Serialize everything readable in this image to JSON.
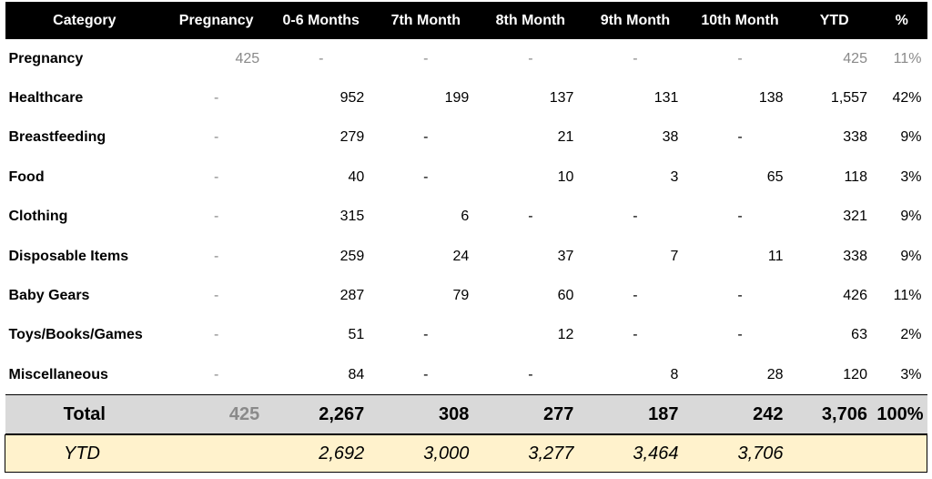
{
  "headers": [
    "Category",
    "Pregnancy",
    "0-6 Months",
    "7th Month",
    "8th Month",
    "9th Month",
    "10th Month",
    "YTD",
    "%"
  ],
  "rows": [
    {
      "category": "Pregnancy",
      "cells": [
        "425",
        "-",
        "-",
        "-",
        "-",
        "-",
        "425",
        "11%"
      ],
      "muted": true
    },
    {
      "category": "Healthcare",
      "cells": [
        "-",
        "952",
        "199",
        "137",
        "131",
        "138",
        "1,557",
        "42%"
      ],
      "muted": false
    },
    {
      "category": "Breastfeeding",
      "cells": [
        "-",
        "279",
        "-",
        "21",
        "38",
        "-",
        "338",
        "9%"
      ],
      "muted": false
    },
    {
      "category": "Food",
      "cells": [
        "-",
        "40",
        "-",
        "10",
        "3",
        "65",
        "118",
        "3%"
      ],
      "muted": false
    },
    {
      "category": "Clothing",
      "cells": [
        "-",
        "315",
        "6",
        "-",
        "-",
        "-",
        "321",
        "9%"
      ],
      "muted": false
    },
    {
      "category": "Disposable Items",
      "cells": [
        "-",
        "259",
        "24",
        "37",
        "7",
        "11",
        "338",
        "9%"
      ],
      "muted": false
    },
    {
      "category": "Baby Gears",
      "cells": [
        "-",
        "287",
        "79",
        "60",
        "-",
        "-",
        "426",
        "11%"
      ],
      "muted": false
    },
    {
      "category": "Toys/Books/Games",
      "cells": [
        "-",
        "51",
        "-",
        "12",
        "-",
        "-",
        "63",
        "2%"
      ],
      "muted": false
    },
    {
      "category": "Miscellaneous",
      "cells": [
        "-",
        "84",
        "-",
        "-",
        "8",
        "28",
        "120",
        "3%"
      ],
      "muted": false
    }
  ],
  "total": {
    "label": "Total",
    "cells": [
      "425",
      "2,267",
      "308",
      "277",
      "187",
      "242",
      "3,706",
      "100%"
    ]
  },
  "ytd": {
    "label": "YTD",
    "cells": [
      "",
      "2,692",
      "3,000",
      "3,277",
      "3,464",
      "3,706",
      "",
      ""
    ]
  },
  "colors": {
    "header_bg": "#000000",
    "header_text": "#ffffff",
    "total_bg": "#d9d9d9",
    "ytd_bg": "#fff2cc",
    "muted_text": "#8a8a8a"
  }
}
